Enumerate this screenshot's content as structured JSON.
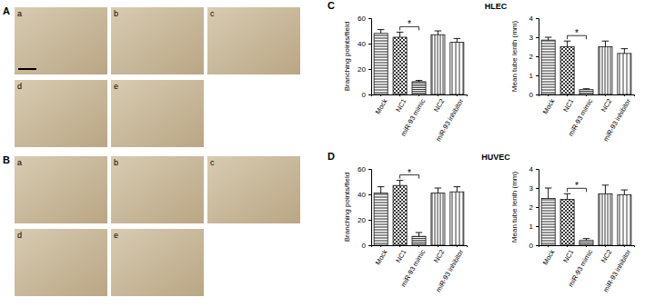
{
  "figure": {
    "panels": [
      {
        "label": "A",
        "images": [
          "a",
          "b",
          "c",
          "d",
          "e"
        ]
      },
      {
        "label": "B",
        "images": [
          "a",
          "b",
          "c",
          "d",
          "e"
        ]
      },
      {
        "label": "C",
        "title": "HLEC"
      },
      {
        "label": "D",
        "title": "HUVEC"
      }
    ]
  },
  "chart_data": [
    {
      "type": "bar",
      "categories": [
        "Mock",
        "NC1",
        "miR-93 mimic",
        "NC2",
        "miR-93 inhibitor"
      ],
      "values": [
        48,
        45,
        10,
        47,
        41
      ],
      "errors": [
        3,
        4,
        1,
        3,
        3
      ],
      "ylim": [
        0,
        60
      ],
      "yticks": [
        0,
        20,
        40,
        60
      ],
      "y_label": "Branching points/field",
      "annotations": [
        {
          "text": "*",
          "categories": [
            "NC1",
            "miR-93 mimic"
          ]
        }
      ]
    },
    {
      "type": "bar",
      "categories": [
        "Mock",
        "NC1",
        "miR-93 mimic",
        "NC2",
        "miR-93 inhibitor"
      ],
      "values": [
        2.85,
        2.5,
        0.25,
        2.5,
        2.15
      ],
      "errors": [
        0.15,
        0.3,
        0.05,
        0.3,
        0.25
      ],
      "ylim": [
        0,
        4
      ],
      "yticks": [
        0,
        1,
        2,
        3,
        4
      ],
      "y_label": "Mean tube lenth (mm)",
      "annotations": [
        {
          "text": "*",
          "categories": [
            "NC1",
            "miR-93 mimic"
          ]
        }
      ]
    },
    {
      "type": "bar",
      "categories": [
        "Mock",
        "NC1",
        "miR-93 mimic",
        "NC2",
        "miR-93 inhibitor"
      ],
      "values": [
        41,
        47,
        7,
        41,
        42
      ],
      "errors": [
        5,
        4,
        3,
        4,
        4
      ],
      "ylim": [
        0,
        60
      ],
      "yticks": [
        0,
        20,
        40,
        60
      ],
      "y_label": "Branching points/field",
      "annotations": [
        {
          "text": "*",
          "categories": [
            "NC1",
            "miR-93 mimic"
          ]
        }
      ]
    },
    {
      "type": "bar",
      "categories": [
        "Mock",
        "NC1",
        "miR-93 mimic",
        "NC2",
        "miR-93 inhibitor"
      ],
      "values": [
        2.45,
        2.4,
        0.25,
        2.7,
        2.65
      ],
      "errors": [
        0.55,
        0.3,
        0.1,
        0.45,
        0.25
      ],
      "ylim": [
        0,
        4
      ],
      "yticks": [
        0,
        1,
        2,
        3,
        4
      ],
      "y_label": "Mean tube lenth (mm)",
      "annotations": [
        {
          "text": "*",
          "categories": [
            "NC1",
            "miR-93 mimic"
          ]
        }
      ]
    }
  ]
}
